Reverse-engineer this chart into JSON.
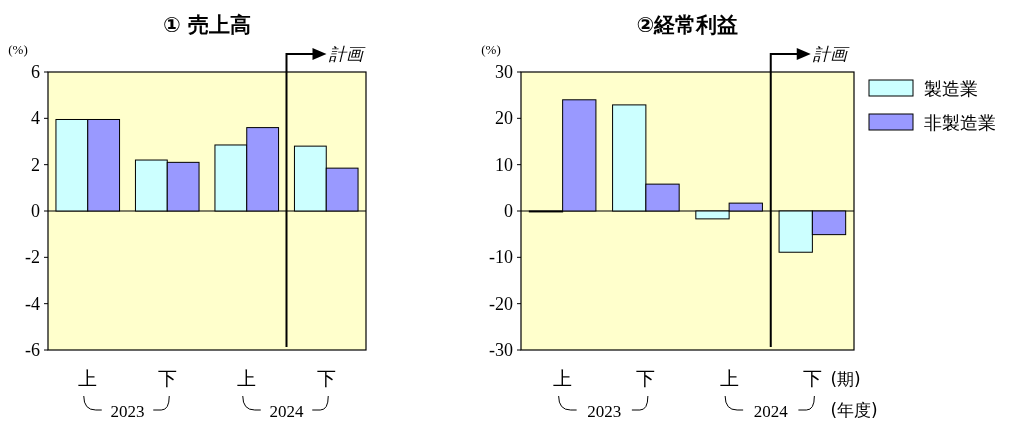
{
  "chart_data": [
    {
      "type": "bar",
      "title": "①  売上高",
      "ylabel": "(%)",
      "categories": [
        "上",
        "下",
        "上",
        "下"
      ],
      "series": [
        {
          "color": "#ccffff",
          "values": [
            3.95,
            2.2,
            2.85,
            2.8
          ]
        },
        {
          "color": "#9999ff",
          "values": [
            3.95,
            2.1,
            3.6,
            1.85
          ]
        }
      ],
      "ylim": [
        -6,
        6
      ],
      "yticks": [
        -6,
        -4,
        -2,
        0,
        2,
        4,
        6
      ],
      "legend": false,
      "annotations": [
        "2023",
        "2024",
        "計画"
      ]
    },
    {
      "type": "bar",
      "title": "②経常利益",
      "ylabel": "(%)",
      "xlabel": "(期)",
      "categories": [
        "上",
        "下",
        "上",
        "下"
      ],
      "series": [
        {
          "name": "製造業",
          "color": "#ccffff",
          "values": [
            -0.2,
            22.9,
            -1.7,
            -8.9
          ]
        },
        {
          "name": "非製造業",
          "color": "#9999ff",
          "values": [
            24.0,
            5.8,
            1.7,
            -5.1
          ]
        }
      ],
      "ylim": [
        -30,
        30
      ],
      "yticks": [
        -30,
        -20,
        -10,
        0,
        10,
        20,
        30
      ],
      "legend": "right",
      "annotations": [
        "2023",
        "2024",
        "(年度)",
        "計画"
      ]
    }
  ]
}
